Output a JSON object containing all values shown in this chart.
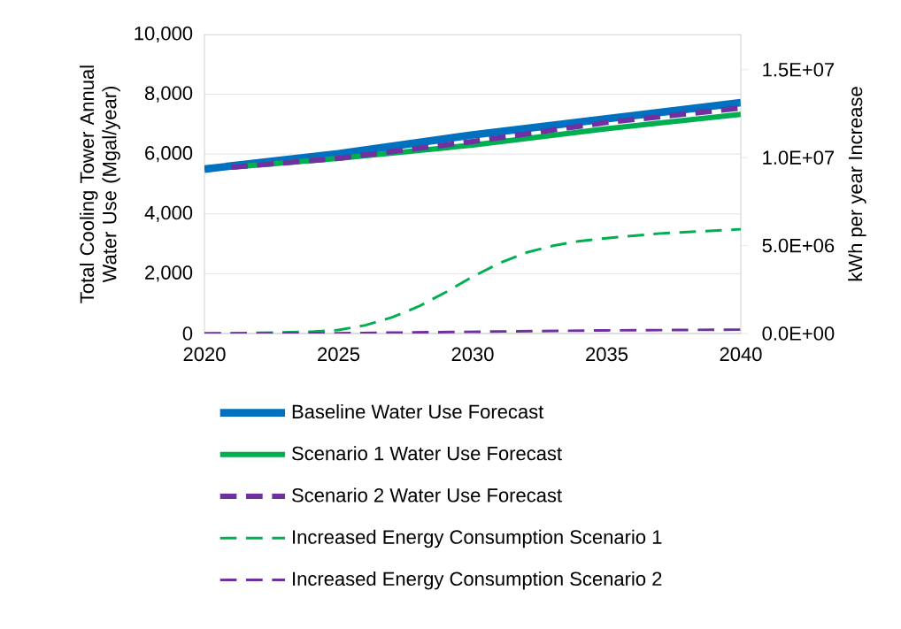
{
  "chart_data": {
    "type": "line",
    "ylabel": "Total Cooling Tower Annual Water Use (Mgal/year)",
    "y2label": "kWh per year Increase",
    "xlim": [
      2020,
      2040
    ],
    "xticks": [
      2020,
      2025,
      2030,
      2035,
      2040
    ],
    "ylim": [
      0,
      10000
    ],
    "yticks": [
      {
        "value": 0,
        "label": "0"
      },
      {
        "value": 2000,
        "label": "2,000"
      },
      {
        "value": 4000,
        "label": "4,000"
      },
      {
        "value": 6000,
        "label": "6,000"
      },
      {
        "value": 8000,
        "label": "8,000"
      },
      {
        "value": 10000,
        "label": "10,000"
      }
    ],
    "y2lim": [
      0,
      17000000
    ],
    "y2ticks": [
      {
        "value": 0,
        "label": "0.0E+00"
      },
      {
        "value": 5000000,
        "label": "5.0E+06"
      },
      {
        "value": 10000000,
        "label": "1.0E+07"
      },
      {
        "value": 15000000,
        "label": "1.5E+07"
      }
    ],
    "grid": "y",
    "legend": "bottom",
    "marker": "none",
    "series": [
      {
        "name": "Baseline Water Use Forecast",
        "color": "#0070c0",
        "line_style": "solid",
        "x": [
          2020,
          2025,
          2030,
          2035,
          2040
        ],
        "values": [
          5500,
          6010,
          6640,
          7180,
          7720
        ]
      },
      {
        "name": "Scenario 1 Water Use Forecast",
        "color": "#00b050",
        "line_style": "solid",
        "x": [
          2021,
          2025,
          2030,
          2035,
          2040
        ],
        "values": [
          5560,
          5860,
          6300,
          6850,
          7330
        ]
      },
      {
        "name": "Scenario 2 Water Use Forecast",
        "color": "#7030a0",
        "line_style": "dashed",
        "x": [
          2021,
          2025,
          2030,
          2035,
          2040
        ],
        "values": [
          5560,
          5860,
          6420,
          7060,
          7540
        ]
      },
      {
        "name": "Increased Energy Consumption Scenario 1",
        "color": "#00b050",
        "line_style": "dashed",
        "axis": "y2",
        "x": [
          2020,
          2022,
          2024,
          2025,
          2026,
          2027,
          2028,
          2029,
          2030,
          2031,
          2032,
          2033,
          2034,
          2035,
          2036,
          2037,
          2038,
          2039,
          2040
        ],
        "values": [
          0,
          40000,
          100000,
          200000,
          470000,
          920000,
          1550000,
          2350000,
          3230000,
          4000000,
          4600000,
          4990000,
          5260000,
          5420000,
          5560000,
          5690000,
          5770000,
          5850000,
          5930000
        ]
      },
      {
        "name": "Increased Energy Consumption Scenario 2",
        "color": "#7030a0",
        "line_style": "dashed",
        "axis": "y2",
        "x": [
          2020,
          2025,
          2030,
          2035,
          2040
        ],
        "values": [
          0,
          20000,
          100000,
          180000,
          220000
        ]
      }
    ]
  }
}
